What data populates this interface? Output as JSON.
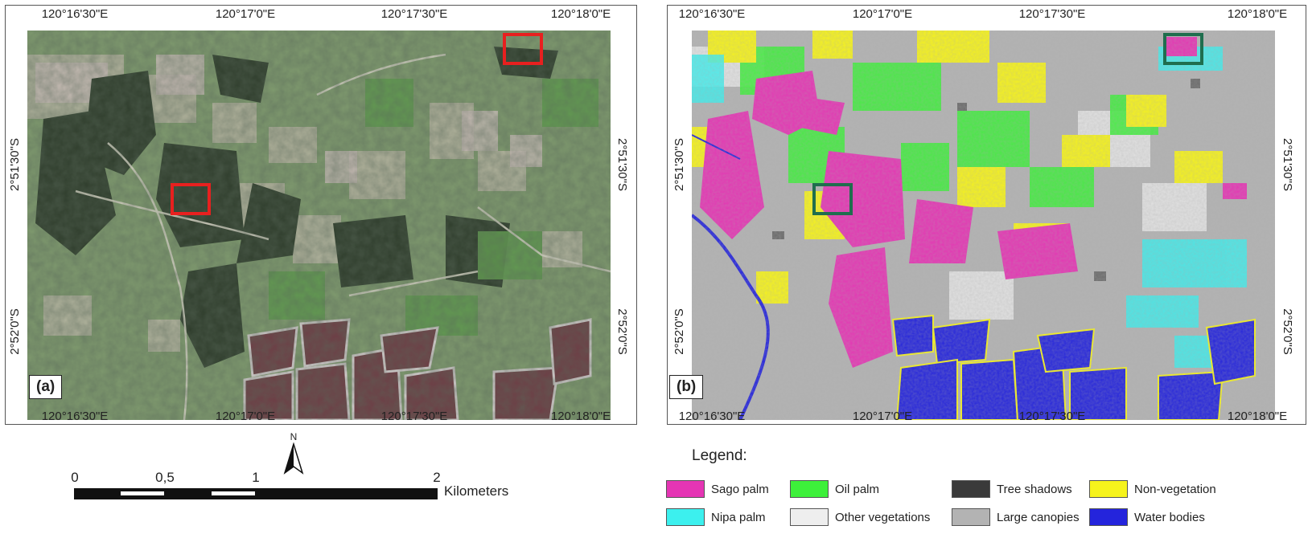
{
  "panels": {
    "a": {
      "label": "(a)"
    },
    "b": {
      "label": "(b)"
    }
  },
  "coords": {
    "lon": [
      "120°16'30\"E",
      "120°17'0\"E",
      "120°17'30\"E",
      "120°18'0\"E"
    ],
    "lat": [
      "2°51'30\"S",
      "2°52'0\"S"
    ]
  },
  "north_arrow": {
    "label": "N"
  },
  "scale_bar": {
    "ticks": [
      "0",
      "0,5",
      "1",
      "2"
    ],
    "unit": "Kilometers"
  },
  "legend": {
    "title": "Legend:",
    "items": [
      {
        "label": "Sago palm",
        "color": "#e535b4"
      },
      {
        "label": "Oil palm",
        "color": "#3df03a"
      },
      {
        "label": "Tree shadows",
        "color": "#3a3a3a"
      },
      {
        "label": "Non-vegetation",
        "color": "#f6f31c"
      },
      {
        "label": "Nipa palm",
        "color": "#3cf0ee"
      },
      {
        "label": "Other vegetations",
        "color": "#eeeeee"
      },
      {
        "label": "Large canopies",
        "color": "#b3b3b3"
      },
      {
        "label": "Water bodies",
        "color": "#2424dc"
      }
    ]
  },
  "highlight_colors": {
    "panel_a": "#e8201f",
    "panel_b": "#1f6e4e"
  }
}
